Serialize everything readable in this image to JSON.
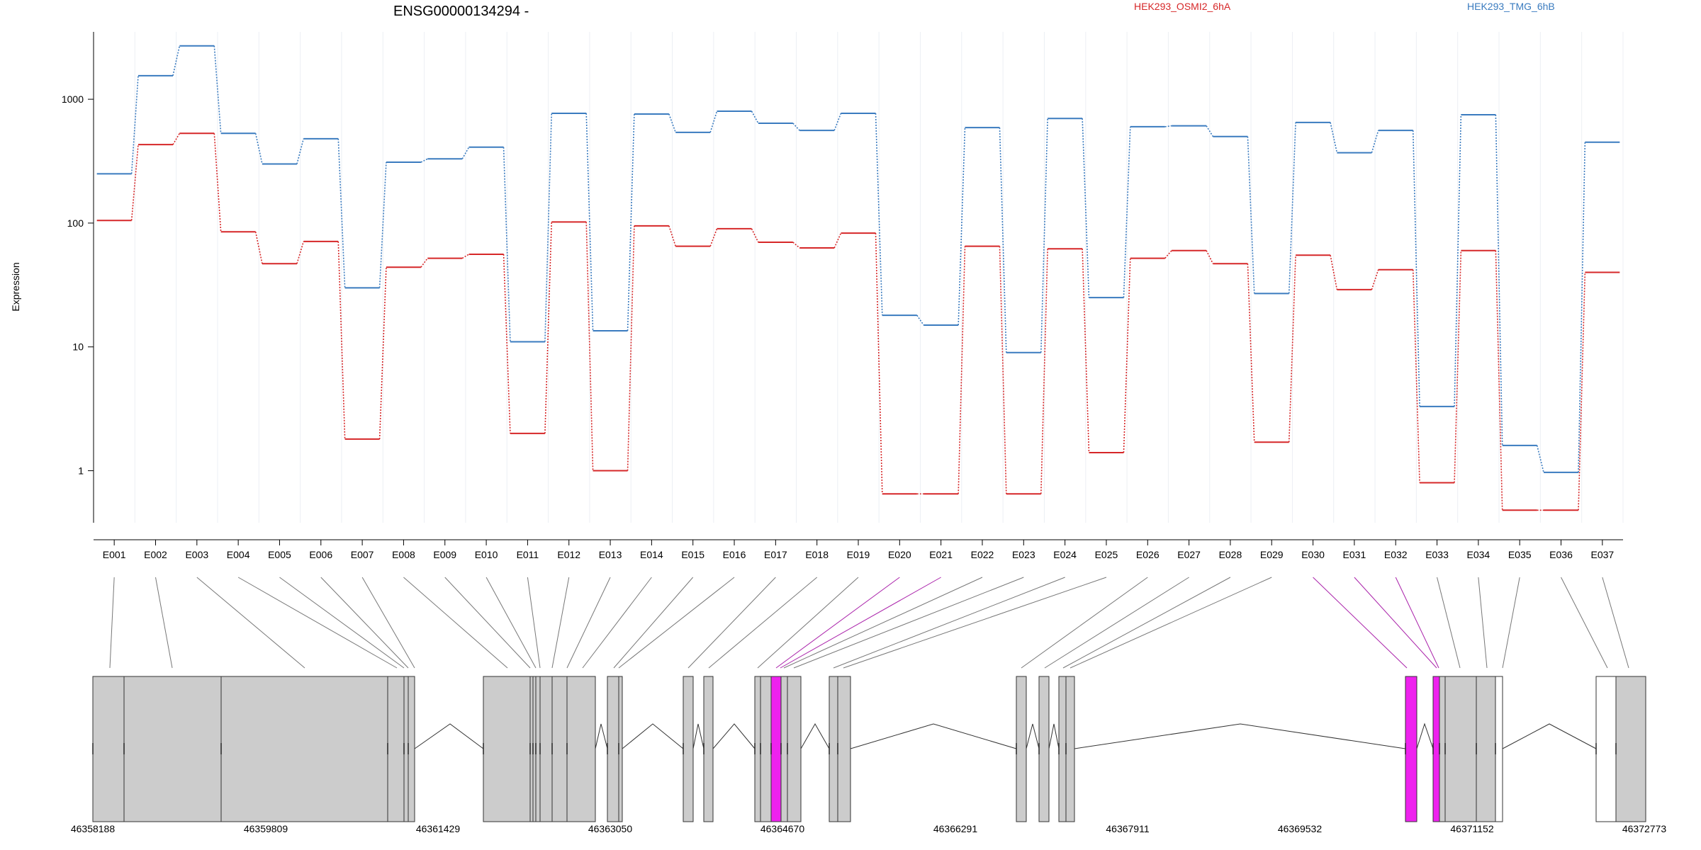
{
  "title": "ENSG00000134294 -",
  "legend": [
    {
      "name": "HEK293_OSMI2_6hA",
      "color": "#d62728"
    },
    {
      "name": "HEK293_TMG_6hB",
      "color": "#3a7bbf"
    }
  ],
  "ylabel": "Expression",
  "yticks": [
    "1",
    "10",
    "100",
    "1000"
  ],
  "highlight_color": "#ee22ee",
  "exon_fill": "#cccccc",
  "chart_data": {
    "type": "line",
    "yscale": "log",
    "ylim": [
      0.38,
      3500
    ],
    "categories": [
      "E001",
      "E002",
      "E003",
      "E004",
      "E005",
      "E006",
      "E007",
      "E008",
      "E009",
      "E010",
      "E011",
      "E012",
      "E013",
      "E014",
      "E015",
      "E016",
      "E017",
      "E018",
      "E019",
      "E020",
      "E021",
      "E022",
      "E023",
      "E024",
      "E025",
      "E026",
      "E027",
      "E028",
      "E029",
      "E030",
      "E031",
      "E032",
      "E033",
      "E034",
      "E035",
      "E036",
      "E037"
    ],
    "series": [
      {
        "name": "HEK293_OSMI2_6hA",
        "color": "#d62728",
        "values": [
          105,
          430,
          530,
          85,
          47,
          71,
          1.8,
          44,
          52,
          56,
          2,
          102,
          1,
          95,
          65,
          90,
          70,
          63,
          83,
          0.65,
          0.65,
          65,
          0.65,
          62,
          1.4,
          52,
          60,
          47,
          1.7,
          55,
          29,
          42,
          0.8,
          60,
          0.48,
          0.48,
          40
        ]
      },
      {
        "name": "HEK293_TMG_6hB",
        "color": "#3a7bbf",
        "values": [
          250,
          1550,
          2700,
          530,
          300,
          480,
          30,
          310,
          330,
          410,
          11,
          770,
          13.5,
          760,
          540,
          800,
          640,
          560,
          770,
          18,
          15,
          590,
          9,
          700,
          25,
          600,
          610,
          500,
          27,
          650,
          370,
          560,
          3.3,
          750,
          1.6,
          0.97,
          450
        ]
      }
    ],
    "highlighted_exons": [
      "E020",
      "E021",
      "E030",
      "E031",
      "E032"
    ],
    "xaxis": {
      "labels": [
        "46358188",
        "46359809",
        "46361429",
        "46363050",
        "46364670",
        "46366291",
        "46367911",
        "46369532",
        "46371152",
        "46372773"
      ]
    }
  }
}
